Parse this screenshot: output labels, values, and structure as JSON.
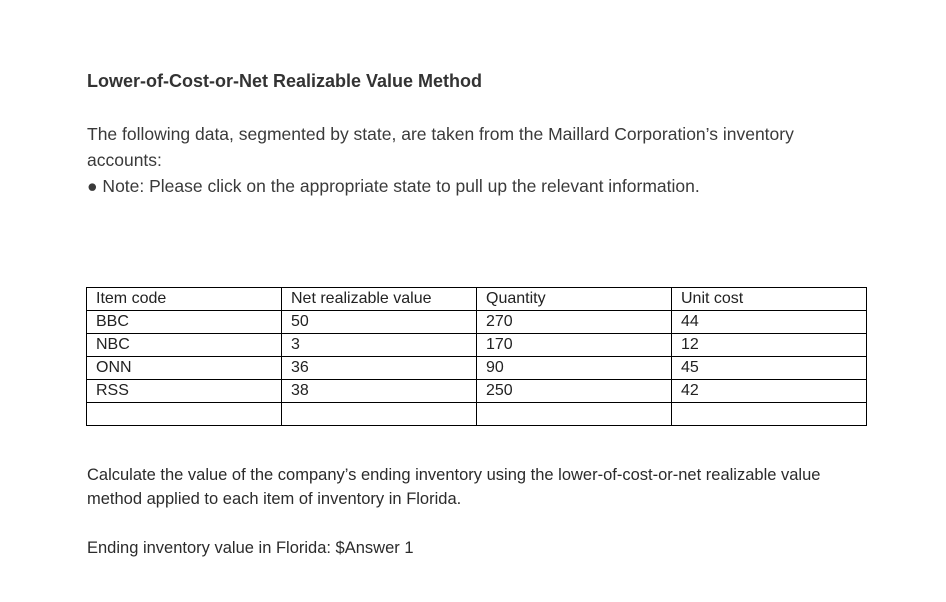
{
  "title": "Lower-of-Cost-or-Net Realizable Value Method",
  "intro": {
    "text": "The following data, segmented by state, are taken from the Maillard Corporation’s inventory accounts:",
    "note": "● Note: Please click on the appropriate state to pull up the relevant information."
  },
  "table": {
    "headers": [
      "Item code",
      "Net realizable value",
      "Quantity",
      "Unit cost"
    ],
    "rows": [
      [
        "BBC",
        "50",
        "270",
        "44"
      ],
      [
        "NBC",
        "3",
        "170",
        "12"
      ],
      [
        "ONN",
        "36",
        "90",
        "45"
      ],
      [
        "RSS",
        "38",
        "250",
        "42"
      ],
      [
        "",
        "",
        "",
        ""
      ]
    ]
  },
  "question": "Calculate the value of the company’s ending inventory using the lower-of-cost-or-net realizable value method applied to each item of inventory in Florida.",
  "answer": {
    "label": "Ending inventory value in Florida: $",
    "field": "Answer 1"
  }
}
